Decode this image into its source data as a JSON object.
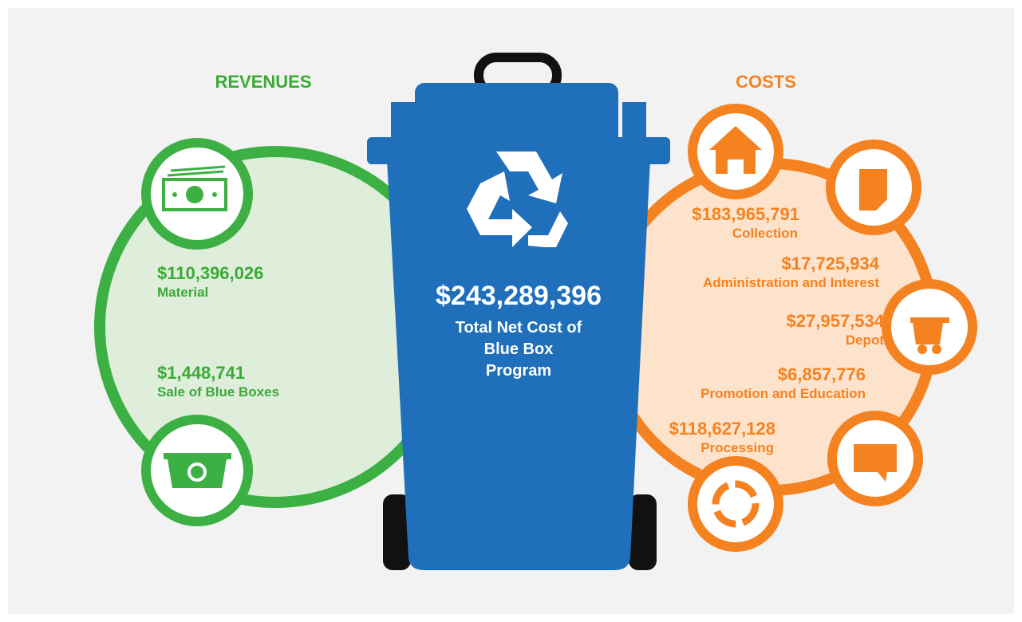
{
  "revenues": {
    "title": "REVENUES",
    "items": [
      {
        "amount": "$110,396,026",
        "label": "Material"
      },
      {
        "amount": "$1,448,741",
        "label": "Sale of Blue Boxes"
      }
    ]
  },
  "total": {
    "amount": "$243,289,396",
    "label": "Total Net Cost of Blue Box Program"
  },
  "costs": {
    "title": "COSTS",
    "items": [
      {
        "amount": "$183,965,791",
        "label": "Collection"
      },
      {
        "amount": "$17,725,934",
        "label": "Administration and Interest"
      },
      {
        "amount": "$27,957,534",
        "label": "Depot"
      },
      {
        "amount": "$6,857,776",
        "label": "Promotion and Education"
      },
      {
        "amount": "$118,627,128",
        "label": "Processing"
      }
    ]
  }
}
